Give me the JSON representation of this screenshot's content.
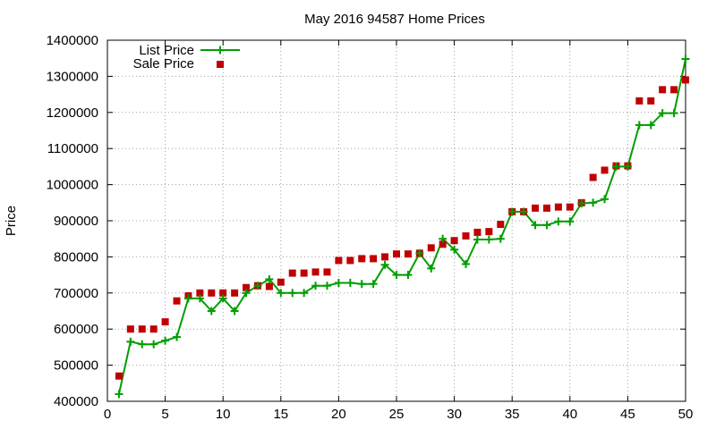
{
  "chart_data": {
    "type": "line",
    "title": "May 2016 94587 Home Prices",
    "xlabel": "",
    "ylabel": "Price",
    "xlim": [
      0,
      50
    ],
    "ylim": [
      400000,
      1400000
    ],
    "x_ticks": [
      "0",
      "5",
      "10",
      "15",
      "20",
      "25",
      "30",
      "35",
      "40",
      "45",
      "50"
    ],
    "y_ticks": [
      "400000",
      "500000",
      "600000",
      "700000",
      "800000",
      "900000",
      "1000000",
      "1100000",
      "1200000",
      "1300000",
      "1400000"
    ],
    "grid": true,
    "legend_position": "top-left",
    "x": [
      1,
      2,
      3,
      4,
      5,
      6,
      7,
      8,
      9,
      10,
      11,
      12,
      13,
      14,
      15,
      16,
      17,
      18,
      19,
      20,
      21,
      22,
      23,
      24,
      25,
      26,
      27,
      28,
      29,
      30,
      31,
      32,
      33,
      34,
      35,
      36,
      37,
      38,
      39,
      40,
      41,
      42,
      43,
      44,
      45,
      46,
      47,
      48,
      49,
      50
    ],
    "series": [
      {
        "name": "List Price",
        "style": "line-with-plus-markers",
        "color": "#009e00",
        "values": [
          420000,
          565000,
          558000,
          558000,
          568000,
          578000,
          685000,
          685000,
          650000,
          685000,
          650000,
          700000,
          720000,
          738000,
          700000,
          700000,
          700000,
          720000,
          720000,
          728000,
          728000,
          725000,
          725000,
          778000,
          750000,
          750000,
          810000,
          768000,
          850000,
          820000,
          780000,
          848000,
          848000,
          850000,
          925000,
          925000,
          888000,
          888000,
          898000,
          898000,
          948000,
          950000,
          960000,
          1050000,
          1050000,
          1165000,
          1165000,
          1198000,
          1198000,
          1348000
        ]
      },
      {
        "name": "Sale Price",
        "style": "square-markers",
        "color": "#c00000",
        "values": [
          470000,
          600000,
          600000,
          600000,
          620000,
          678000,
          692000,
          700000,
          700000,
          700000,
          700000,
          715000,
          720000,
          718000,
          730000,
          755000,
          755000,
          758000,
          758000,
          790000,
          790000,
          795000,
          795000,
          800000,
          808000,
          808000,
          810000,
          825000,
          835000,
          845000,
          858000,
          868000,
          870000,
          890000,
          925000,
          925000,
          935000,
          935000,
          938000,
          938000,
          950000,
          1020000,
          1040000,
          1052000,
          1052000,
          1232000,
          1232000,
          1263000,
          1263000,
          1290000
        ]
      }
    ]
  }
}
